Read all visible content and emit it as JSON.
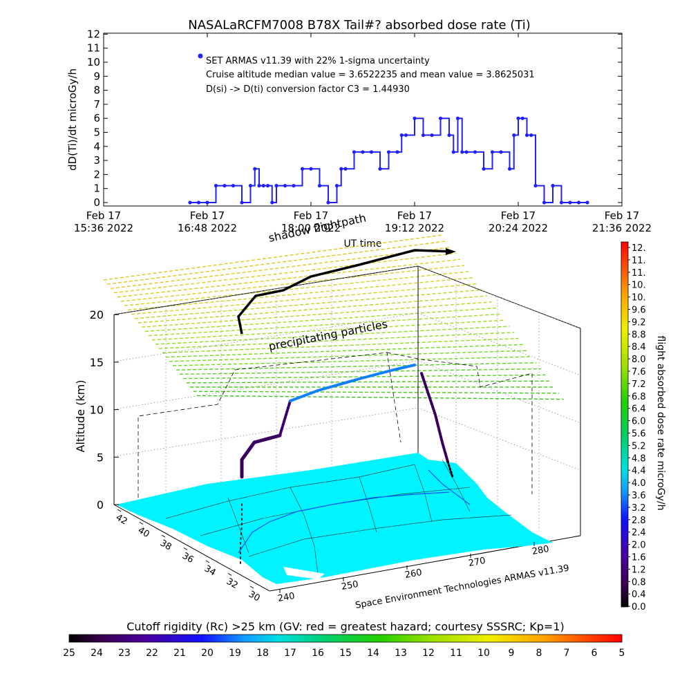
{
  "top_chart": {
    "title": "NASALaRCFM7008  B78X Tail#? absorbed dose rate (Ti)",
    "ylabel": "dD(Ti)/dt microGy/h",
    "legend": {
      "series_label": "SET ARMAS v11.39 with 22% 1-sigma uncertainty",
      "line2": "Cruise altitude median value = 3.6522235 and mean value = 3.8625031",
      "line3": "D(si) -> D(ti) conversion factor C3 = 1.44930"
    },
    "yticks": [
      "0",
      "1",
      "2",
      "3",
      "4",
      "5",
      "6",
      "7",
      "8",
      "9",
      "10",
      "11",
      "12"
    ],
    "xticks": [
      {
        "top": "Feb 17",
        "bottom": "15:36 2022"
      },
      {
        "top": "Feb 17",
        "bottom": "16:48 2022"
      },
      {
        "top": "Feb 17",
        "bottom": "18:00 2022"
      },
      {
        "top": "Feb 17",
        "bottom": "19:12 2022"
      },
      {
        "top": "Feb 17",
        "bottom": "20:24 2022"
      },
      {
        "top": "Feb 17",
        "bottom": "21:36 2022"
      }
    ],
    "xlabel": "UT time"
  },
  "chart_data": {
    "type": "scatter",
    "title": "NASALaRCFM7008  B78X Tail#? absorbed dose rate (Ti)",
    "ylabel": "dD(Ti)/dt microGy/h",
    "xlabel": "UT time",
    "x_unit": "hours UT on Feb 17 2022",
    "xlim": [
      15.6,
      21.6
    ],
    "ylim": [
      0,
      12
    ],
    "series": [
      {
        "name": "SET ARMAS v11.39 with 22% 1-sigma uncertainty",
        "color": "#2020ff",
        "x": [
          16.6,
          16.7,
          16.8,
          16.9,
          17.0,
          17.1,
          17.2,
          17.3,
          17.35,
          17.4,
          17.45,
          17.5,
          17.55,
          17.6,
          17.7,
          17.8,
          17.9,
          18.0,
          18.1,
          18.2,
          18.3,
          18.35,
          18.4,
          18.5,
          18.6,
          18.7,
          18.8,
          18.9,
          19.0,
          19.05,
          19.1,
          19.2,
          19.3,
          19.4,
          19.5,
          19.6,
          19.65,
          19.7,
          19.75,
          19.8,
          19.9,
          20.0,
          20.1,
          20.2,
          20.3,
          20.35,
          20.4,
          20.45,
          20.5,
          20.55,
          20.6,
          20.7,
          20.8,
          20.9,
          21.0,
          21.1,
          21.2
        ],
        "y": [
          0,
          0,
          0,
          1.2,
          1.2,
          1.2,
          0,
          1.2,
          2.4,
          1.2,
          1.2,
          1.2,
          0,
          1.2,
          1.2,
          1.2,
          2.4,
          2.4,
          1.2,
          0,
          1.2,
          2.4,
          2.4,
          3.6,
          3.6,
          3.6,
          2.4,
          3.6,
          3.6,
          4.8,
          4.8,
          6.0,
          4.8,
          4.8,
          6.0,
          4.8,
          3.6,
          6.0,
          3.6,
          3.6,
          3.6,
          2.4,
          3.6,
          3.6,
          2.4,
          4.8,
          6.0,
          6.0,
          4.8,
          4.8,
          1.2,
          0,
          1.2,
          0,
          0,
          0,
          0
        ]
      }
    ],
    "annotations": [
      "Cruise altitude median value = 3.6522235 and mean value = 3.8625031",
      "D(si) -> D(ti) conversion factor C3 = 1.44930"
    ]
  },
  "scene": {
    "altitude_label": "Altitude (km)",
    "altitude_ticks": [
      "0",
      "5",
      "10",
      "15",
      "20"
    ],
    "lat_ticks": [
      "42",
      "40",
      "38",
      "36",
      "34",
      "32",
      "30"
    ],
    "lon_ticks": [
      "240",
      "250",
      "260",
      "270",
      "280"
    ],
    "shadow_label": "shadow flightpath",
    "precip_label": "precipitating particles",
    "credit": "Space Environment Technologies ARMAS v11.39"
  },
  "right_colorbar": {
    "label": "flight absorbed dose rate microGy/h",
    "ticks": [
      "12.",
      "11.",
      "11.",
      "10.",
      "10.",
      "9.6",
      "9.2",
      "8.8",
      "8.4",
      "8.0",
      "7.6",
      "7.2",
      "6.8",
      "6.4",
      "6.0",
      "5.6",
      "5.2",
      "4.8",
      "4.4",
      "4.0",
      "3.6",
      "3.2",
      "2.8",
      "2.4",
      "2.0",
      "1.6",
      "1.2",
      "0.8",
      "0.4",
      "0.0"
    ]
  },
  "bottom_colorbar": {
    "label": "Cutoff rigidity (Rc) >25 km (GV: red = greatest hazard; courtesy SSSRC; Kp=1)",
    "ticks": [
      "25",
      "24",
      "23",
      "22",
      "21",
      "20",
      "19",
      "18",
      "17",
      "16",
      "15",
      "14",
      "13",
      "12",
      "11",
      "10",
      "9",
      "8",
      "7",
      "6",
      "5"
    ]
  }
}
